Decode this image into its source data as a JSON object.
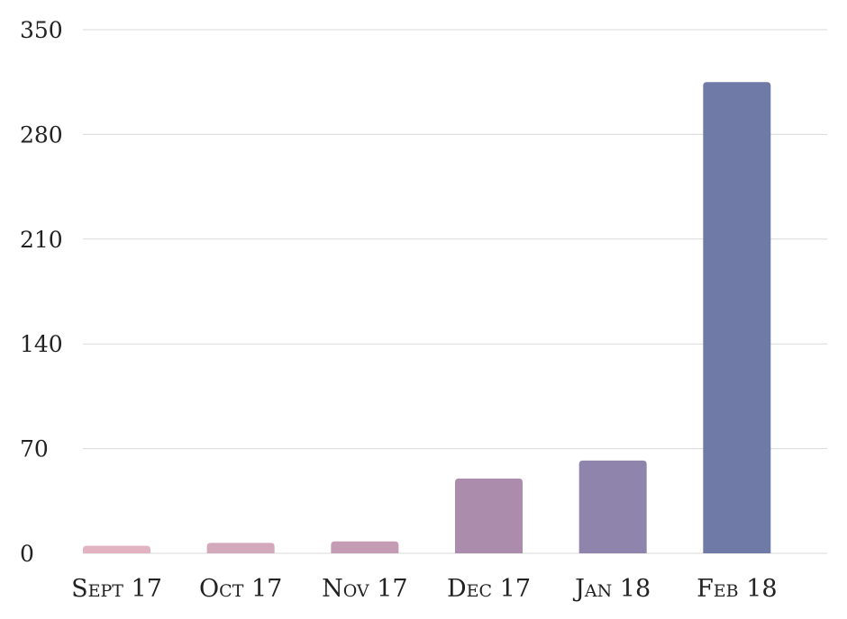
{
  "chart_data": {
    "type": "bar",
    "categories": [
      "Sept 17",
      "Oct 17",
      "Nov 17",
      "Dec 17",
      "Jan 18",
      "Feb 18"
    ],
    "values": [
      5,
      7,
      8,
      50,
      62,
      315
    ],
    "ylim": [
      0,
      350
    ],
    "yticks": [
      "0",
      "70",
      "140",
      "210",
      "280",
      "350"
    ],
    "ytick_values": [
      0,
      70,
      140,
      210,
      280,
      350
    ],
    "grid": true,
    "bar_colors": [
      "#e2b4c2",
      "#d3a8bb",
      "#c49db5",
      "#ab8cad",
      "#8f84ab",
      "#6f7aa6"
    ]
  }
}
